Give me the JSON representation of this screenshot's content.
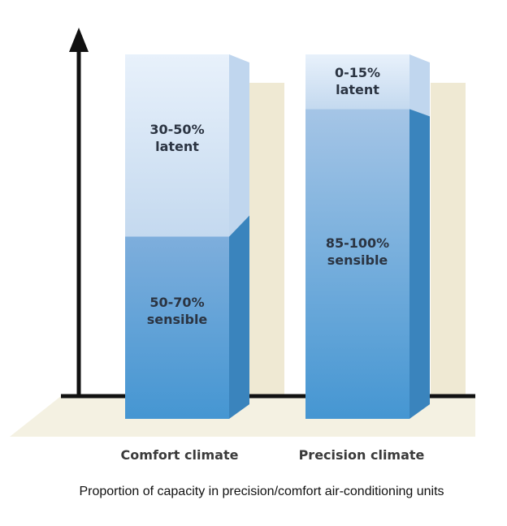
{
  "chart_data": {
    "type": "bar",
    "stacked": true,
    "style": "3d",
    "title": "",
    "caption": "Proportion of capacity in precision/comfort air-conditioning units",
    "categories": [
      "Comfort climate",
      "Precision climate"
    ],
    "series": [
      {
        "name": "sensible",
        "labels": [
          "50-70%",
          "85-100%"
        ],
        "ranges": [
          [
            50,
            70
          ],
          [
            85,
            100
          ]
        ]
      },
      {
        "name": "latent",
        "labels": [
          "30-50%",
          "0-15%"
        ],
        "ranges": [
          [
            30,
            50
          ],
          [
            0,
            15
          ]
        ]
      }
    ],
    "ylim": [
      0,
      100
    ],
    "grid": false,
    "colors": {
      "sensible": "#5b9fd6",
      "latent": "#d3e3f4",
      "back_panel": "#efe9d3",
      "axis": "#111111"
    }
  }
}
